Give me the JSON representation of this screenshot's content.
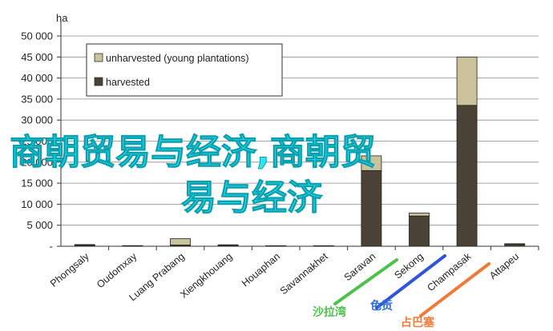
{
  "chart_data": {
    "type": "bar",
    "stacked": true,
    "unit_label": "ha",
    "categories": [
      "Phongsaly",
      "Oudomxay",
      "Luang Prabang",
      "Xiengkhouang",
      "Houaphan",
      "Savannakhet",
      "Saravan",
      "Sekong",
      "Champasak",
      "Attapeu"
    ],
    "series": [
      {
        "name": "harvested",
        "color": "#4a4235",
        "values": [
          300,
          100,
          300,
          300,
          100,
          100,
          18000,
          7200,
          33500,
          500
        ]
      },
      {
        "name": "unharvested (young plantations)",
        "color": "#c9c29a",
        "values": [
          100,
          50,
          1500,
          50,
          30,
          30,
          3500,
          700,
          11500,
          100
        ]
      }
    ],
    "yticks": [
      "50 000",
      "45 000",
      "40 000",
      "35 000",
      "30 000",
      "25 000",
      "20 000",
      "15 000",
      "10 000",
      "5 000",
      "-"
    ],
    "ylim": [
      0,
      50000
    ],
    "grid": true,
    "legend": "top-left"
  },
  "overlay_text": "商朝贸易与经济 商朝贸易与经济",
  "watermarks": [
    {
      "text": "沙拉湾",
      "color": "#4cc24c"
    },
    {
      "text": "色贡",
      "color": "#2f6fd8"
    },
    {
      "text": "占巴塞",
      "color": "#f07a3a"
    }
  ]
}
